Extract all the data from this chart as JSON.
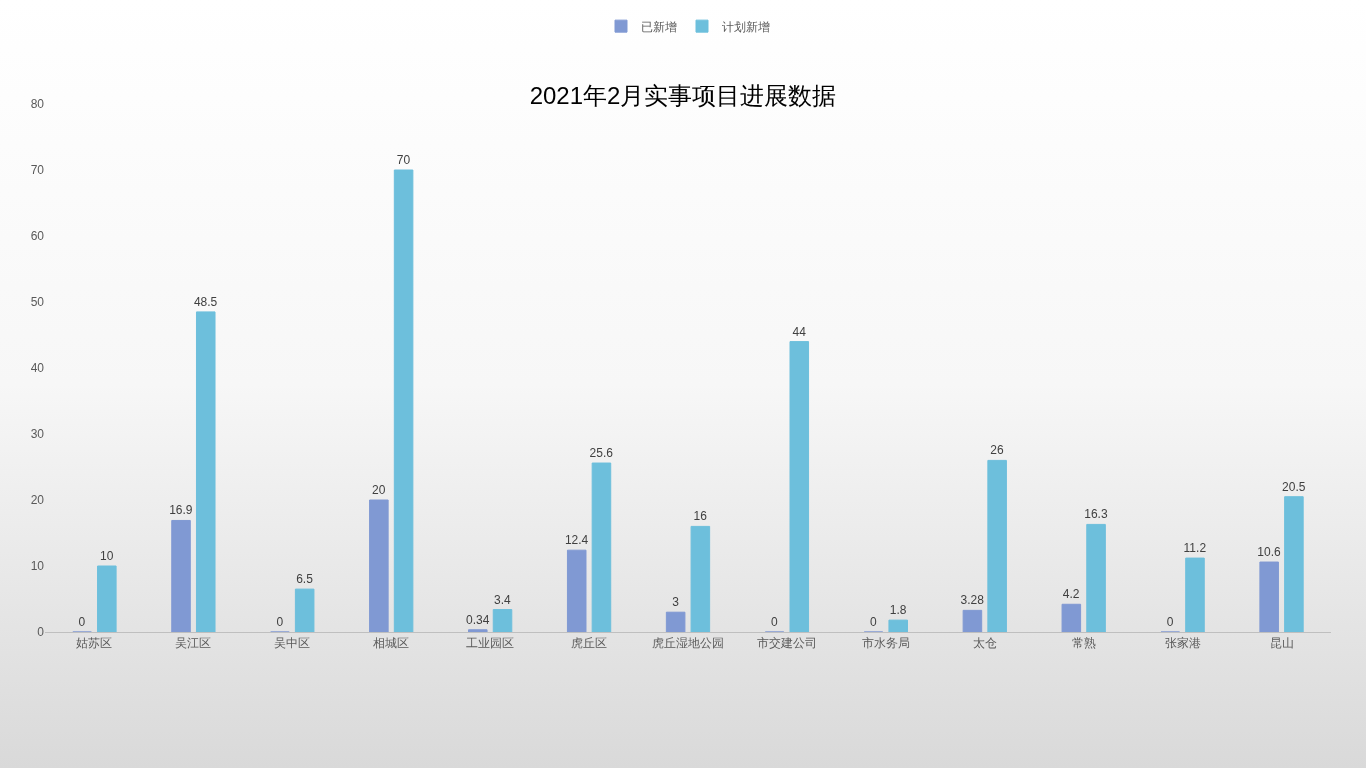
{
  "chart_data": {
    "type": "bar",
    "title": "2021年2月实事项目进展数据",
    "categories": [
      "姑苏区",
      "吴江区",
      "吴中区",
      "相城区",
      "工业园区",
      "虎丘区",
      "虎丘湿地公园",
      "市交建公司",
      "市水务局",
      "太仓",
      "常熟",
      "张家港",
      "昆山"
    ],
    "series": [
      {
        "name": "已新增",
        "color": "#8099d3",
        "values": [
          0,
          16.9,
          0,
          20,
          0.34,
          12.4,
          3,
          0,
          0,
          3.28,
          4.2,
          0,
          10.6
        ]
      },
      {
        "name": "计划新增",
        "color": "#6dbfdc",
        "values": [
          10,
          48.5,
          6.5,
          70,
          3.4,
          25.6,
          16,
          44,
          1.8,
          26,
          16.3,
          11.2,
          20.5
        ]
      }
    ],
    "ylim": [
      0,
      80
    ],
    "yticks": [
      0,
      10,
      20,
      30,
      40,
      50,
      60,
      70,
      80
    ],
    "grid": false,
    "legend": "top",
    "data_labels": true
  }
}
